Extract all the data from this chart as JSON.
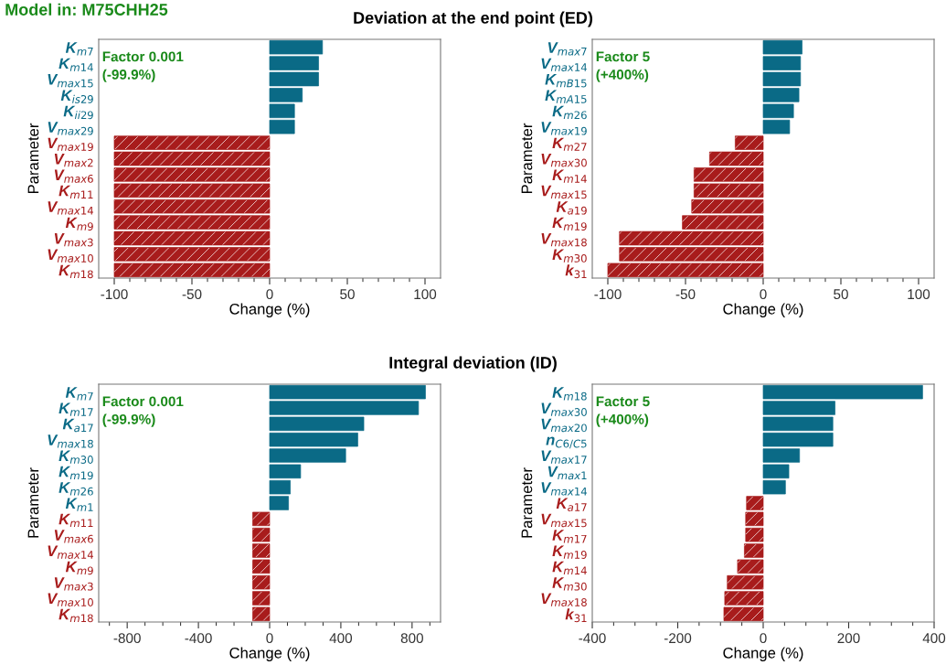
{
  "chart_data": [
    {
      "type": "bar",
      "orientation": "horizontal",
      "title": "Deviation at the end point (ED)",
      "ylabel": "Parameter",
      "xlabel": "Change (%)",
      "annotations": [
        "Model in: M75CHH25",
        "Factor 0.001",
        "(-99.9%)"
      ],
      "categories": [
        "K$_{m7}$",
        "K$_{m14}$",
        "V$_{max15}$",
        "K$_{is29}$",
        "K$_{ii29}$",
        "V$_{max29}$",
        "V$_{max19}$",
        "V$_{max2}$",
        "V$_{max6}$",
        "K$_{m11}$",
        "V$_{max14}$",
        "K$_{m9}$",
        "V$_{max3}$",
        "V$_{max10}$",
        "K$_{m18}$"
      ],
      "values": [
        34,
        31.5,
        31.5,
        21,
        16,
        16,
        -100,
        -100,
        -100,
        -100,
        -100,
        -100,
        -100,
        -100,
        -100
      ],
      "colors": [
        "#0a6a86",
        "#0a6a86",
        "#0a6a86",
        "#0a6a86",
        "#0a6a86",
        "#0a6a86",
        "#a81c1c",
        "#a81c1c",
        "#a81c1c",
        "#a81c1c",
        "#a81c1c",
        "#a81c1c",
        "#a81c1c",
        "#a81c1c",
        "#a81c1c"
      ],
      "xlim": [
        -110,
        110
      ],
      "xticks": [
        -100,
        {
          "value": -90,
          "label": null
        },
        {
          "value": -80,
          "label": null
        },
        {
          "value": -70,
          "label": null
        },
        {
          "value": -60,
          "label": null
        },
        -50,
        {
          "value": -40,
          "label": null
        },
        {
          "value": -30,
          "label": null
        },
        {
          "value": -20,
          "label": null
        },
        {
          "value": -10,
          "label": null
        },
        0,
        {
          "value": 10,
          "label": null
        },
        {
          "value": 20,
          "label": null
        },
        {
          "value": 30,
          "label": null
        },
        {
          "value": 40,
          "label": null
        },
        50,
        {
          "value": 60,
          "label": null
        },
        {
          "value": 70,
          "label": null
        },
        {
          "value": 80,
          "label": null
        },
        {
          "value": 90,
          "label": null
        },
        100
      ]
    },
    {
      "type": "bar",
      "orientation": "horizontal",
      "ylabel": "Parameter",
      "xlabel": "Change (%)",
      "annotations": [
        "Factor 5",
        "(+400%)"
      ],
      "categories": [
        "V$_{max7}$",
        "V$_{max14}$",
        "K$_{mB15}$",
        "K$_{mA15}$",
        "K$_{m26}$",
        "V$_{max19}$",
        "K$_{m27}$",
        "V$_{max30}$",
        "K$_{m14}$",
        "V$_{max15}$",
        "K$_{a19}$",
        "K$_{m19}$",
        "V$_{max18}$",
        "K$_{m30}$",
        "k$_{31}$"
      ],
      "values": [
        25,
        24,
        24,
        23,
        19.5,
        17,
        -18,
        -34.5,
        -44.5,
        -44.5,
        -46,
        -52,
        -92.5,
        -92.5,
        -100
      ],
      "colors": [
        "#0a6a86",
        "#0a6a86",
        "#0a6a86",
        "#0a6a86",
        "#0a6a86",
        "#0a6a86",
        "#a81c1c",
        "#a81c1c",
        "#a81c1c",
        "#a81c1c",
        "#a81c1c",
        "#a81c1c",
        "#a81c1c",
        "#a81c1c",
        "#a81c1c"
      ],
      "xlim": [
        -110,
        110
      ],
      "xticks": [
        -100,
        {
          "value": -90,
          "label": null
        },
        {
          "value": -80,
          "label": null
        },
        {
          "value": -70,
          "label": null
        },
        {
          "value": -60,
          "label": null
        },
        -50,
        {
          "value": -40,
          "label": null
        },
        {
          "value": -30,
          "label": null
        },
        {
          "value": -20,
          "label": null
        },
        {
          "value": -10,
          "label": null
        },
        0,
        {
          "value": 10,
          "label": null
        },
        {
          "value": 20,
          "label": null
        },
        {
          "value": 30,
          "label": null
        },
        {
          "value": 40,
          "label": null
        },
        50,
        {
          "value": 60,
          "label": null
        },
        {
          "value": 70,
          "label": null
        },
        {
          "value": 80,
          "label": null
        },
        {
          "value": 90,
          "label": null
        },
        100
      ]
    },
    {
      "type": "bar",
      "orientation": "horizontal",
      "title": "Integral deviation (ID)",
      "ylabel": "Parameter",
      "xlabel": "Change (%)",
      "annotations": [
        "Factor 0.001",
        "(-99.9%)"
      ],
      "categories": [
        "K$_{m7}$",
        "K$_{m17}$",
        "K$_{a17}$",
        "V$_{max18}$",
        "K$_{m30}$",
        "K$_{m19}$",
        "K$_{m26}$",
        "K$_{m1}$",
        "K$_{m11}$",
        "V$_{max6}$",
        "V$_{max14}$",
        "K$_{m9}$",
        "V$_{max3}$",
        "V$_{max10}$",
        "K$_{m18}$"
      ],
      "values": [
        875,
        836,
        529,
        495,
        427,
        174,
        116,
        106,
        -95,
        -95,
        -95,
        -95,
        -95,
        -95,
        -95
      ],
      "colors": [
        "#0a6a86",
        "#0a6a86",
        "#0a6a86",
        "#0a6a86",
        "#0a6a86",
        "#0a6a86",
        "#0a6a86",
        "#0a6a86",
        "#a81c1c",
        "#a81c1c",
        "#a81c1c",
        "#a81c1c",
        "#a81c1c",
        "#a81c1c",
        "#a81c1c"
      ],
      "xlim": [
        -960,
        960
      ],
      "xticks": [
        {
          "value": -900,
          "label": null
        },
        -800,
        {
          "value": -700,
          "label": null
        },
        {
          "value": -600,
          "label": null
        },
        {
          "value": -500,
          "label": null
        },
        -400,
        {
          "value": -300,
          "label": null
        },
        {
          "value": -200,
          "label": null
        },
        {
          "value": -100,
          "label": null
        },
        0,
        {
          "value": 100,
          "label": null
        },
        {
          "value": 200,
          "label": null
        },
        {
          "value": 300,
          "label": null
        },
        400,
        {
          "value": 500,
          "label": null
        },
        {
          "value": 600,
          "label": null
        },
        {
          "value": 700,
          "label": null
        },
        800,
        {
          "value": 900,
          "label": null
        }
      ]
    },
    {
      "type": "bar",
      "orientation": "horizontal",
      "ylabel": "Parameter",
      "xlabel": "Change (%)",
      "annotations": [
        "Factor 5",
        "(+400%)"
      ],
      "categories": [
        "K$_{m18}$",
        "V$_{max30}$",
        "V$_{max20}$",
        "n$_{C6/C5}$",
        "V$_{max17}$",
        "V$_{max1}$",
        "V$_{max14}$",
        "K$_{a17}$",
        "V$_{max15}$",
        "K$_{m17}$",
        "K$_{m19}$",
        "K$_{m14}$",
        "K$_{m30}$",
        "V$_{max18}$",
        "k$_{31}$"
      ],
      "values": [
        373,
        168,
        163,
        163,
        85,
        60,
        52,
        -39,
        -41,
        -41,
        -44,
        -60,
        -84,
        -90,
        -92
      ],
      "colors": [
        "#0a6a86",
        "#0a6a86",
        "#0a6a86",
        "#0a6a86",
        "#0a6a86",
        "#0a6a86",
        "#0a6a86",
        "#a81c1c",
        "#a81c1c",
        "#a81c1c",
        "#a81c1c",
        "#a81c1c",
        "#a81c1c",
        "#a81c1c",
        "#a81c1c"
      ],
      "xlim": [
        -400,
        400
      ],
      "xticks": [
        -400,
        {
          "value": -350,
          "label": null
        },
        {
          "value": -300,
          "label": null
        },
        {
          "value": -250,
          "label": null
        },
        -200,
        {
          "value": -150,
          "label": null
        },
        {
          "value": -100,
          "label": null
        },
        {
          "value": -50,
          "label": null
        },
        0,
        {
          "value": 50,
          "label": null
        },
        {
          "value": 100,
          "label": null
        },
        {
          "value": 150,
          "label": null
        },
        200,
        {
          "value": 250,
          "label": null
        },
        {
          "value": 300,
          "label": null
        },
        {
          "value": 350,
          "label": null
        },
        400
      ]
    }
  ]
}
